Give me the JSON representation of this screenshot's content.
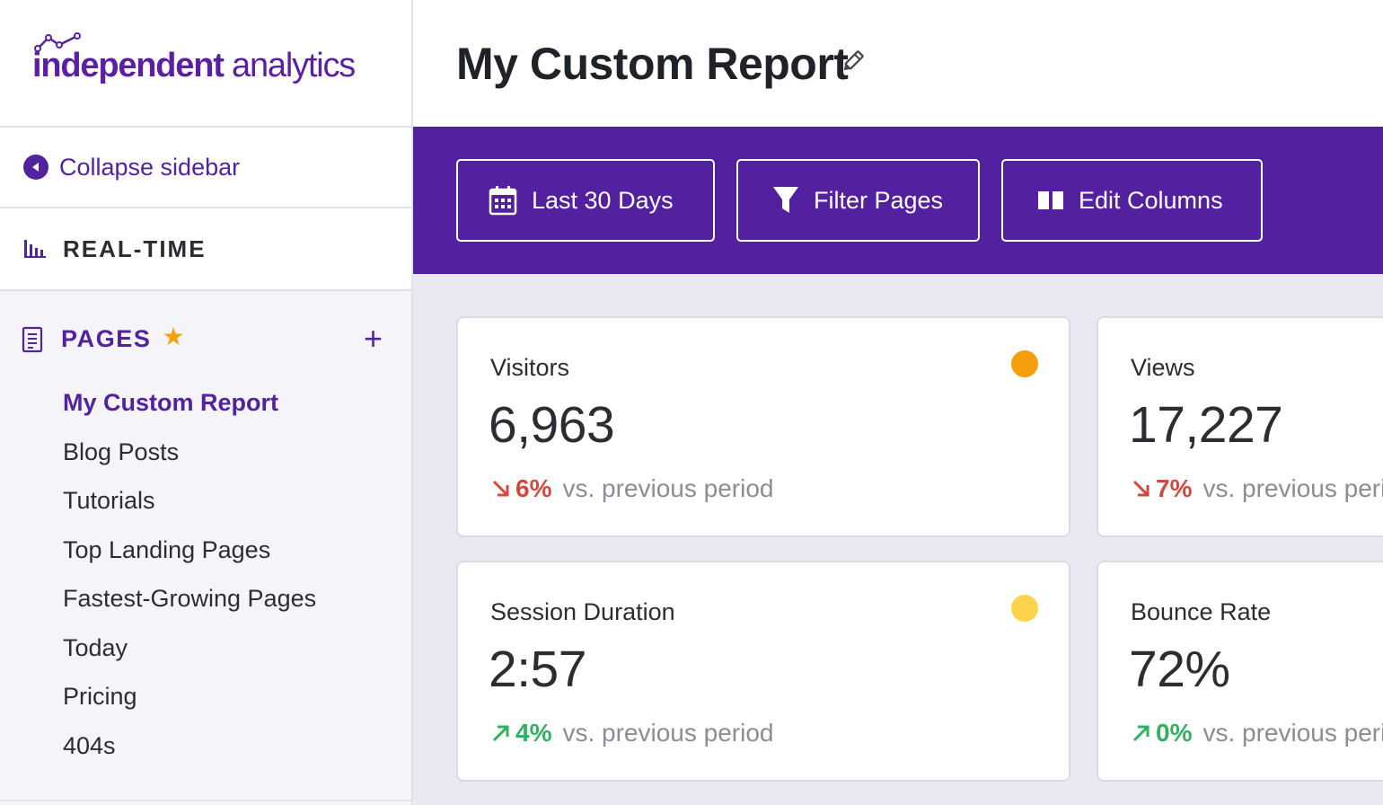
{
  "brand": {
    "logo_bold": "independent",
    "logo_light": " analytics",
    "color": "#5321a0"
  },
  "sidebar": {
    "collapse_label": "Collapse sidebar",
    "realtime_label": "REAL-TIME",
    "pages_label": "PAGES",
    "items": [
      {
        "label": "My Custom Report",
        "active": true
      },
      {
        "label": "Blog Posts"
      },
      {
        "label": "Tutorials"
      },
      {
        "label": "Top Landing Pages"
      },
      {
        "label": "Fastest-Growing Pages"
      },
      {
        "label": "Today"
      },
      {
        "label": "Pricing"
      },
      {
        "label": "404s"
      }
    ]
  },
  "header": {
    "title": "My Custom Report"
  },
  "toolbar": {
    "date_label": "Last 30 Days",
    "filter_label": "Filter Pages",
    "columns_label": "Edit Columns"
  },
  "cards": [
    {
      "label": "Visitors",
      "value": "6,963",
      "change": "6%",
      "direction": "down",
      "compare": "vs. previous period",
      "dot_color": "#f59e0b"
    },
    {
      "label": "Views",
      "value": "17,227",
      "change": "7%",
      "direction": "down",
      "compare": "vs. previous period"
    },
    {
      "label": "Session Duration",
      "value": "2:57",
      "change": "4%",
      "direction": "up",
      "compare": "vs. previous period",
      "dot_color": "#fcd34d"
    },
    {
      "label": "Bounce Rate",
      "value": "72%",
      "change": "0%",
      "direction": "up",
      "compare": "vs. previous period"
    }
  ],
  "icons": {
    "logo_spark": "line-chart-icon",
    "collapse": "chevron-left-circle-icon",
    "realtime": "bar-chart-icon",
    "pages": "document-icon",
    "favorite": "star-icon",
    "add": "plus-icon",
    "edit_title": "pencil-icon",
    "date": "calendar-icon",
    "filter": "funnel-icon",
    "columns": "columns-icon",
    "trend_down": "arrow-down-right-icon",
    "trend_up": "arrow-up-right-icon"
  }
}
